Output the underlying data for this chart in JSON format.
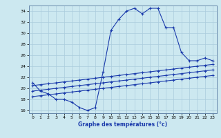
{
  "bg_color": "#cce8f0",
  "line_color": "#1a3aab",
  "grid_color": "#aaccdd",
  "xlabel": "Graphe des températures (°c)",
  "xlim": [
    -0.5,
    23.5
  ],
  "ylim": [
    15.5,
    35.0
  ],
  "yticks": [
    16,
    18,
    20,
    22,
    24,
    26,
    28,
    30,
    32,
    34
  ],
  "xticks": [
    0,
    1,
    2,
    3,
    4,
    5,
    6,
    7,
    8,
    9,
    10,
    11,
    12,
    13,
    14,
    15,
    16,
    17,
    18,
    19,
    20,
    21,
    22,
    23
  ],
  "series1_x": [
    0,
    1,
    2,
    3,
    4,
    5,
    6,
    7,
    8,
    9,
    10,
    11,
    12,
    13,
    14,
    15,
    16,
    17,
    18,
    19,
    20,
    21,
    22,
    23
  ],
  "series1_y": [
    21.0,
    19.5,
    19.0,
    18.0,
    18.0,
    17.5,
    16.5,
    16.0,
    16.5,
    23.0,
    30.5,
    32.5,
    34.0,
    34.5,
    33.5,
    34.5,
    34.5,
    31.0,
    31.0,
    26.5,
    25.0,
    25.0,
    25.5,
    25.0
  ],
  "series2_x": [
    0,
    1,
    2,
    3,
    4,
    5,
    6,
    7,
    8,
    9,
    10,
    11,
    12,
    13,
    14,
    15,
    16,
    17,
    18,
    19,
    20,
    21,
    22,
    23
  ],
  "series2_y": [
    20.5,
    20.67,
    20.83,
    21.0,
    21.17,
    21.33,
    21.5,
    21.67,
    21.83,
    22.0,
    22.17,
    22.33,
    22.5,
    22.67,
    22.83,
    23.0,
    23.17,
    23.33,
    23.5,
    23.67,
    23.83,
    24.0,
    24.17,
    24.33
  ],
  "series3_x": [
    0,
    1,
    2,
    3,
    4,
    5,
    6,
    7,
    8,
    9,
    10,
    11,
    12,
    13,
    14,
    15,
    16,
    17,
    18,
    19,
    20,
    21,
    22,
    23
  ],
  "series3_y": [
    19.5,
    19.67,
    19.83,
    20.0,
    20.17,
    20.33,
    20.5,
    20.67,
    20.83,
    21.0,
    21.17,
    21.33,
    21.5,
    21.67,
    21.83,
    22.0,
    22.17,
    22.33,
    22.5,
    22.67,
    22.83,
    23.0,
    23.17,
    23.33
  ],
  "series4_x": [
    0,
    1,
    2,
    3,
    4,
    5,
    6,
    7,
    8,
    9,
    10,
    11,
    12,
    13,
    14,
    15,
    16,
    17,
    18,
    19,
    20,
    21,
    22,
    23
  ],
  "series4_y": [
    18.5,
    18.67,
    18.83,
    19.0,
    19.17,
    19.33,
    19.5,
    19.67,
    19.83,
    20.0,
    20.17,
    20.33,
    20.5,
    20.67,
    20.83,
    21.0,
    21.17,
    21.33,
    21.5,
    21.67,
    21.83,
    22.0,
    22.17,
    22.33
  ]
}
